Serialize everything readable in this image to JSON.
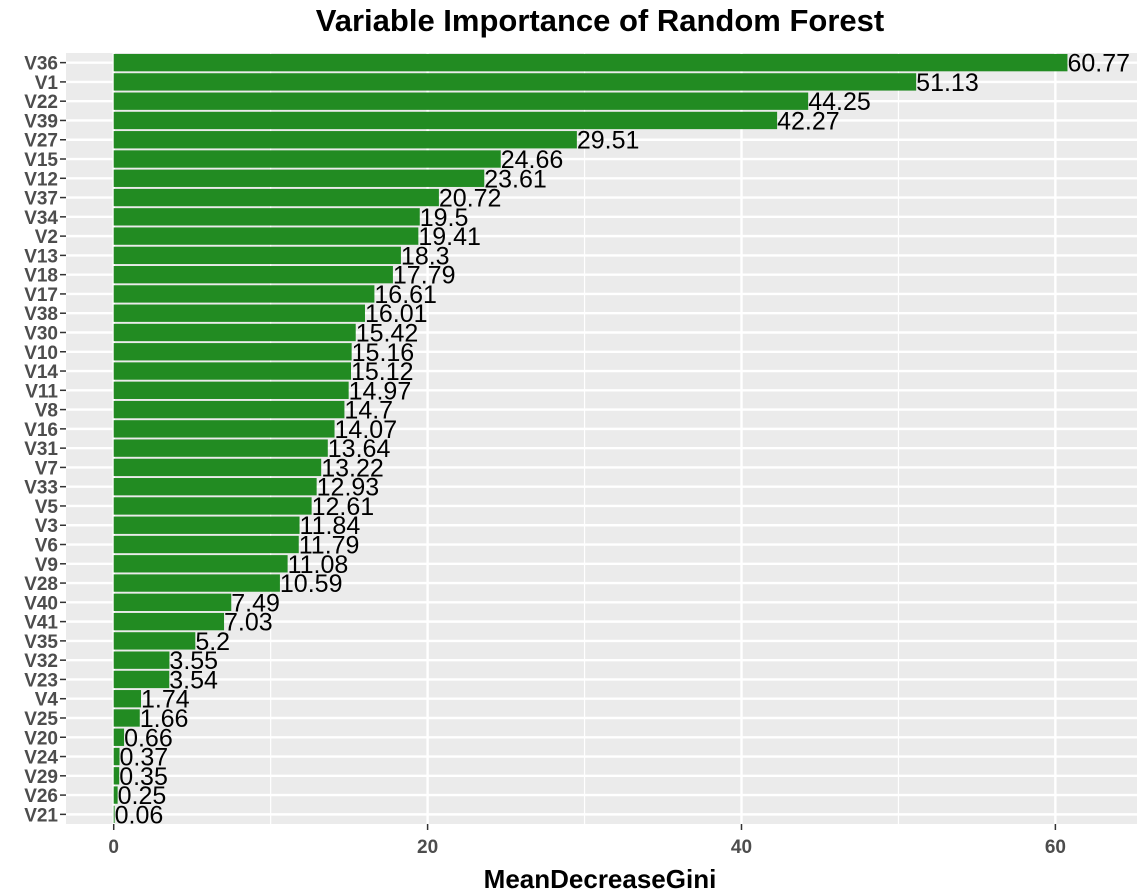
{
  "chart_data": {
    "type": "bar",
    "orientation": "horizontal",
    "title": "Variable Importance of Random Forest",
    "xlabel": "MeanDecreaseGini",
    "ylabel": "",
    "xlim": [
      -3.04,
      65.2
    ],
    "x_ticks": [
      0,
      20,
      40,
      60
    ],
    "grid": true,
    "legend": "none",
    "bar_color": "#228B22",
    "panel_color": "#EBEBEB",
    "categories": [
      "V36",
      "V1",
      "V22",
      "V39",
      "V27",
      "V15",
      "V12",
      "V37",
      "V34",
      "V2",
      "V13",
      "V18",
      "V17",
      "V38",
      "V30",
      "V10",
      "V14",
      "V11",
      "V8",
      "V16",
      "V31",
      "V7",
      "V33",
      "V5",
      "V3",
      "V6",
      "V9",
      "V28",
      "V40",
      "V41",
      "V35",
      "V32",
      "V23",
      "V4",
      "V25",
      "V20",
      "V24",
      "V29",
      "V26",
      "V21"
    ],
    "values": [
      60.77,
      51.13,
      44.25,
      42.27,
      29.51,
      24.66,
      23.61,
      20.72,
      19.5,
      19.41,
      18.3,
      17.79,
      16.61,
      16.01,
      15.42,
      15.16,
      15.12,
      14.97,
      14.7,
      14.07,
      13.64,
      13.22,
      12.93,
      12.61,
      11.84,
      11.79,
      11.08,
      10.59,
      7.49,
      7.03,
      5.2,
      3.55,
      3.54,
      1.74,
      1.66,
      0.66,
      0.37,
      0.35,
      0.25,
      0.06
    ],
    "data_labels": [
      "60.77",
      "51.13",
      "44.25",
      "42.27",
      "29.51",
      "24.66",
      "23.61",
      "20.72",
      "19.5",
      "19.41",
      "18.3",
      "17.79",
      "16.61",
      "16.01",
      "15.42",
      "15.16",
      "15.12",
      "14.97",
      "14.7",
      "14.07",
      "13.64",
      "13.22",
      "12.93",
      "12.61",
      "11.84",
      "11.79",
      "11.08",
      "10.59",
      "7.49",
      "7.03",
      "5.2",
      "3.55",
      "3.54",
      "1.74",
      "1.66",
      "0.66",
      "0.37",
      "0.35",
      "0.25",
      "0.06"
    ]
  }
}
